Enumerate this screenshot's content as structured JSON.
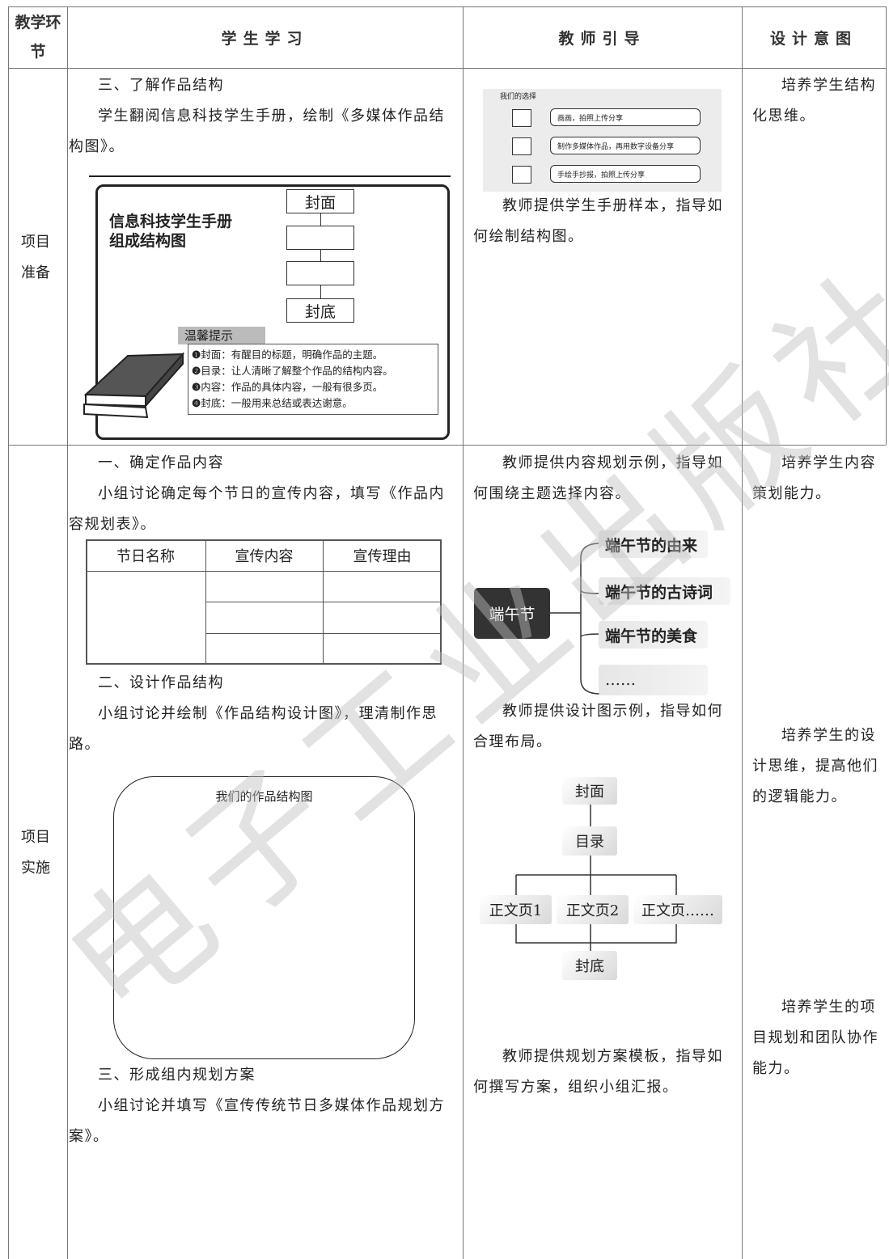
{
  "header": [
    "教学环节",
    "学生学习",
    "教师引导",
    "设计意图"
  ],
  "rows": [
    {
      "stage": "项目准备",
      "student": {
        "heading": "三、了解作品结构",
        "text": "学生翻阅信息科技学生手册，绘制《多媒体作品结构图》。",
        "figure": {
          "title": [
            "信息科技学生手册",
            "组成结构图"
          ],
          "top": "封面",
          "bottom": "封底",
          "tips_title": "温馨提示",
          "tips": [
            "封面：有醒目的标题，明确作品的主题。",
            "目录：让人清晰了解整个作品的结构内容。",
            "内容：作品的具体内容，一般有很多页。",
            "封底：一般用来总结或表达谢意。"
          ]
        }
      },
      "teacher": {
        "choice_title": "我们的选择",
        "options": [
          "画画，拍照上传分享",
          "制作多媒体作品，再用数字设备分享",
          "手绘手抄报，拍照上传分享"
        ],
        "text": "教师提供学生手册样本，指导如何绘制结构图。"
      },
      "intent": "培养学生结构化思维。"
    },
    {
      "stage": "项目实施",
      "student": [
        {
          "heading": "一、确定作品内容",
          "text": "小组讨论确定每个节日的宣传内容，填写《作品内容规划表》。",
          "table_header": [
            "节日名称",
            "宣传内容",
            "宣传理由"
          ]
        },
        {
          "heading": "二、设计作品结构",
          "text": "小组讨论并绘制《作品结构设计图》，理清制作思路。",
          "frame_title": "我们的作品结构图"
        },
        {
          "heading": "三、形成组内规划方案",
          "text": "小组讨论并填写《宣传传统节日多媒体作品规划方案》。"
        }
      ],
      "teacher": [
        {
          "text": "教师提供内容规划示例，指导如何围绕主题选择内容。",
          "root": "端午节",
          "branches": [
            "端午节的由来",
            "端午节的古诗词",
            "端午节的美食",
            "……"
          ]
        },
        {
          "text": "教师提供设计图示例，指导如何合理布局。",
          "cover": "封面",
          "toc": "目录",
          "pages": [
            "正文页1",
            "正文页2",
            "正文页……"
          ],
          "back": "封底"
        },
        {
          "text": "教师提供规划方案模板，指导如何撰写方案，组织小组汇报。"
        }
      ],
      "intents": [
        "培养学生内容策划能力。",
        "培养学生的设计思维，提高他们的逻辑能力。",
        "培养学生的项目规划和团队协作能力。"
      ]
    }
  ],
  "watermark": "电子工业出版社"
}
